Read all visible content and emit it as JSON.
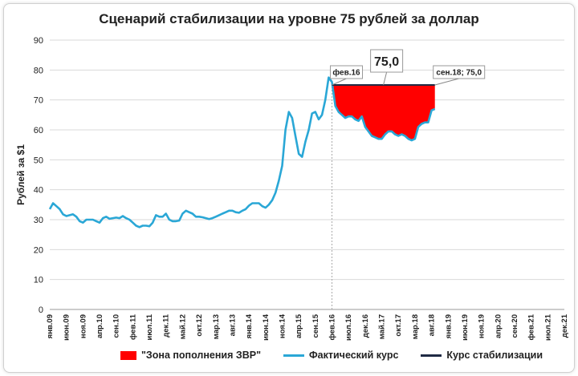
{
  "chart_data": {
    "type": "line",
    "title": "Сценарий стабилизации на уровне 75 рублей за доллар",
    "ylabel": "Рублей за $1",
    "xlabel": "",
    "ylim": [
      0,
      90
    ],
    "yticks": [
      0,
      10,
      20,
      30,
      40,
      50,
      60,
      70,
      80,
      90
    ],
    "xlim": [
      "2009-01",
      "2021-12"
    ],
    "xticks": [
      "янв.09",
      "июн.09",
      "ноя.09",
      "апр.10",
      "сен.10",
      "фев.11",
      "июл.11",
      "дек.11",
      "май.12",
      "окт.12",
      "мар.13",
      "авг.13",
      "янв.14",
      "июн.14",
      "ноя.14",
      "апр.15",
      "сен.15",
      "фев.16",
      "июл.16",
      "дек.16",
      "май.17",
      "окт.17",
      "мар.18",
      "авг.18",
      "янв.19",
      "июн.19",
      "ноя.19",
      "апр.20",
      "сен.20",
      "фев.21",
      "июл.21",
      "дек.21"
    ],
    "grid": true,
    "legend_position": "bottom",
    "colors": {
      "actual": "#2aa7d6",
      "stabilization": "#1f2a44",
      "zone": "#ff0000",
      "grid": "#d9d9d9"
    },
    "series": [
      {
        "name": "Фактический курс",
        "x": [
          "2009-01",
          "2009-02",
          "2009-03",
          "2009-04",
          "2009-05",
          "2009-06",
          "2009-07",
          "2009-08",
          "2009-09",
          "2009-10",
          "2009-11",
          "2009-12",
          "2010-01",
          "2010-02",
          "2010-03",
          "2010-04",
          "2010-05",
          "2010-06",
          "2010-07",
          "2010-08",
          "2010-09",
          "2010-10",
          "2010-11",
          "2010-12",
          "2011-01",
          "2011-02",
          "2011-03",
          "2011-04",
          "2011-05",
          "2011-06",
          "2011-07",
          "2011-08",
          "2011-09",
          "2011-10",
          "2011-11",
          "2011-12",
          "2012-01",
          "2012-02",
          "2012-03",
          "2012-04",
          "2012-05",
          "2012-06",
          "2012-07",
          "2012-08",
          "2012-09",
          "2012-10",
          "2012-11",
          "2012-12",
          "2013-01",
          "2013-02",
          "2013-03",
          "2013-04",
          "2013-05",
          "2013-06",
          "2013-07",
          "2013-08",
          "2013-09",
          "2013-10",
          "2013-11",
          "2013-12",
          "2014-01",
          "2014-02",
          "2014-03",
          "2014-04",
          "2014-05",
          "2014-06",
          "2014-07",
          "2014-08",
          "2014-09",
          "2014-10",
          "2014-11",
          "2014-12",
          "2015-01",
          "2015-02",
          "2015-03",
          "2015-04",
          "2015-05",
          "2015-06",
          "2015-07",
          "2015-08",
          "2015-09",
          "2015-10",
          "2015-11",
          "2015-12",
          "2016-01",
          "2016-02",
          "2016-03",
          "2016-04",
          "2016-05",
          "2016-06",
          "2016-07",
          "2016-08",
          "2016-09",
          "2016-10",
          "2016-11",
          "2016-12",
          "2017-01",
          "2017-02",
          "2017-03",
          "2017-04",
          "2017-05",
          "2017-06",
          "2017-07",
          "2017-08",
          "2017-09",
          "2017-10",
          "2017-11",
          "2017-12",
          "2018-01",
          "2018-02",
          "2018-03",
          "2018-04",
          "2018-05",
          "2018-06",
          "2018-07",
          "2018-08",
          "2018-09"
        ],
        "values": [
          33.5,
          35.5,
          34.5,
          33.5,
          31.8,
          31.2,
          31.5,
          31.8,
          31.0,
          29.5,
          29.0,
          30.0,
          30.0,
          30.0,
          29.5,
          29.0,
          30.5,
          31.0,
          30.3,
          30.5,
          30.7,
          30.5,
          31.2,
          30.5,
          30.0,
          29.0,
          28.0,
          27.5,
          28.0,
          28.0,
          27.8,
          29.0,
          31.5,
          31.0,
          31.0,
          32.0,
          30.0,
          29.5,
          29.5,
          29.7,
          32.0,
          33.0,
          32.5,
          32.0,
          31.0,
          31.0,
          30.8,
          30.5,
          30.2,
          30.5,
          31.0,
          31.5,
          32.0,
          32.5,
          33.0,
          33.0,
          32.5,
          32.3,
          33.0,
          33.5,
          34.7,
          35.5,
          35.5,
          35.5,
          34.5,
          34.0,
          35.0,
          36.5,
          39.0,
          43.0,
          48.0,
          60.0,
          66.0,
          64.0,
          58.0,
          52.0,
          51.0,
          56.0,
          60.0,
          65.5,
          66.0,
          63.5,
          65.0,
          70.0,
          77.5,
          76.0,
          68.0,
          66.0,
          65.0,
          64.0,
          64.5,
          64.5,
          63.5,
          63.0,
          64.5,
          61.0,
          59.5,
          58.0,
          57.5,
          57.0,
          57.0,
          58.5,
          59.5,
          59.5,
          58.5,
          58.0,
          58.5,
          58.0,
          57.0,
          56.5,
          57.0,
          61.0,
          62.0,
          62.5,
          62.5,
          66.5,
          67.0
        ]
      },
      {
        "name": "Курс стабилизации",
        "x": [
          "2016-02",
          "2018-09"
        ],
        "values": [
          75.0,
          75.0
        ]
      }
    ],
    "zone_label": "\"Зона пополнения ЗВР\"",
    "annotations": {
      "start": "фев.16",
      "level": "75,0",
      "end": "сен.18; 75,0"
    }
  }
}
